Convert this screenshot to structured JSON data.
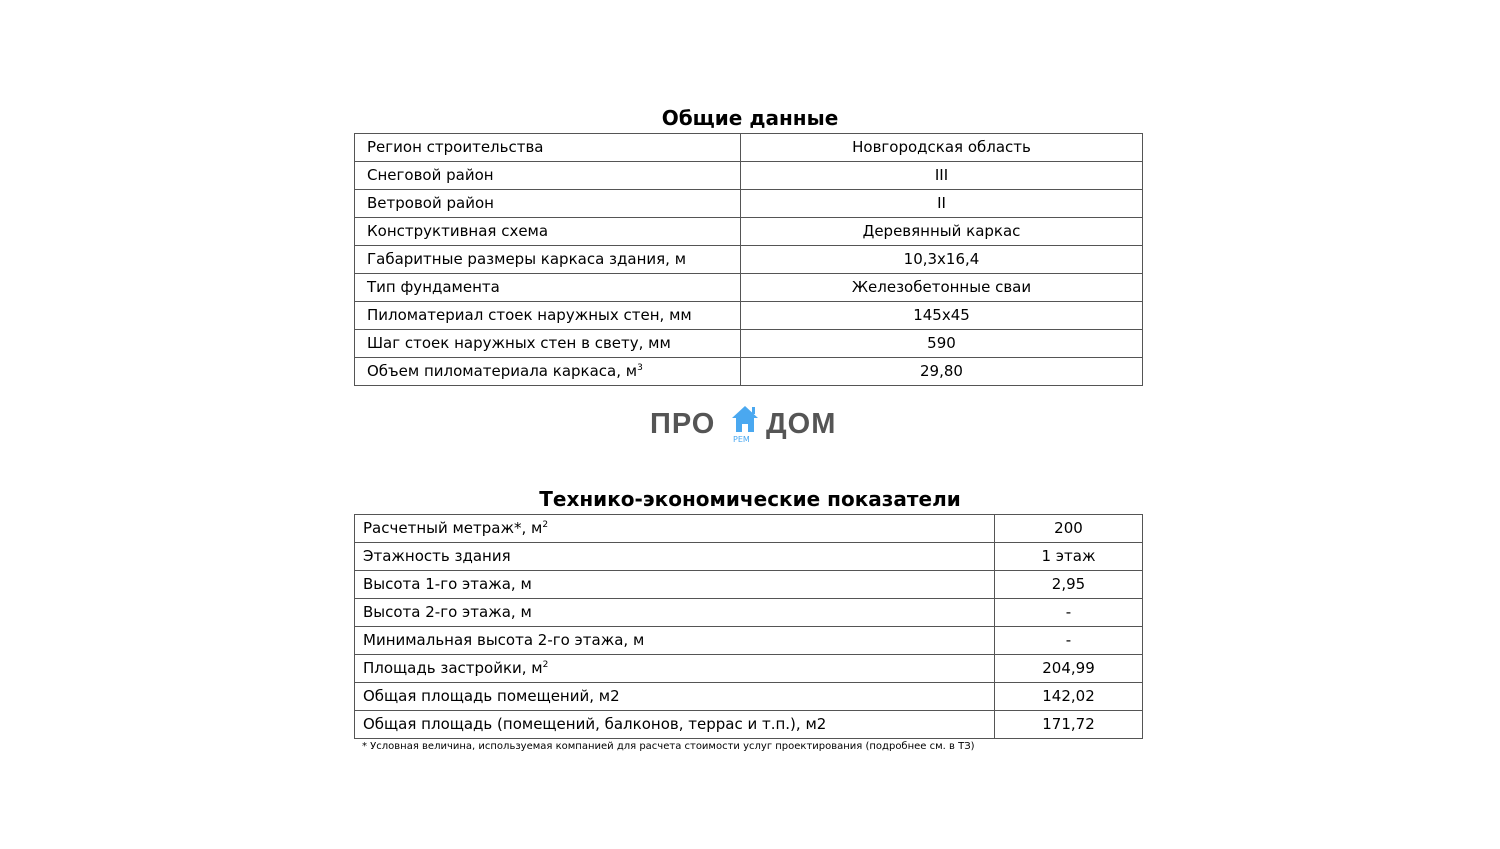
{
  "general": {
    "title": "Общие данные",
    "rows": [
      {
        "label": "Регион строительства",
        "value": "Новгородская область"
      },
      {
        "label": "Снеговой район",
        "value": "III"
      },
      {
        "label": "Ветровой район",
        "value": "II"
      },
      {
        "label": "Конструктивная схема",
        "value": "Деревянный каркас"
      },
      {
        "label": "Габаритные размеры каркаса здания, м",
        "value": "10,3x16,4"
      },
      {
        "label": "Тип фундамента",
        "value": "Железобетонные сваи"
      },
      {
        "label": "Пиломатериал стоек наружных стен, мм",
        "value": "145x45"
      },
      {
        "label": "Шаг стоек наружных стен в свету, мм",
        "value": "590"
      },
      {
        "label": "Объем пиломатериала каркаса, м",
        "sup": "3",
        "value": "29,80"
      }
    ]
  },
  "logo": {
    "left": "ПРО",
    "right": "ДОМ",
    "sub": "РЕМ",
    "icon": "house-icon",
    "color": "#4aa8f0"
  },
  "tech": {
    "title": "Технико-экономические показатели",
    "rows": [
      {
        "label": "Расчетный метраж*, м",
        "sup": "2",
        "value": "200"
      },
      {
        "label": "Этажность здания",
        "value": "1 этаж"
      },
      {
        "label": "Высота 1-го этажа, м",
        "value": "2,95"
      },
      {
        "label": "Высота 2-го этажа, м",
        "value": "-"
      },
      {
        "label": "Минимальная высота 2-го этажа, м",
        "value": "-"
      },
      {
        "label": "Площадь застройки, м",
        "sup": "2",
        "value": "204,99"
      },
      {
        "label": "Общая площадь помещений, м2",
        "value": "142,02"
      },
      {
        "label": "Общая площадь (помещений, балконов, террас и т.п.), м2",
        "value": "171,72"
      }
    ]
  },
  "footnote": "* Условная величина, используемая компанией для расчета стоимости услуг проектирования (подробнее см. в ТЗ)"
}
